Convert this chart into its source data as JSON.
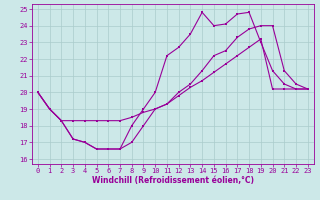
{
  "xlabel": "Windchill (Refroidissement éolien,°C)",
  "bg_color": "#cce8e8",
  "line_color": "#990099",
  "grid_color": "#aacccc",
  "xlim": [
    -0.5,
    23.5
  ],
  "ylim": [
    15.7,
    25.3
  ],
  "yticks": [
    16,
    17,
    18,
    19,
    20,
    21,
    22,
    23,
    24,
    25
  ],
  "xticks": [
    0,
    1,
    2,
    3,
    4,
    5,
    6,
    7,
    8,
    9,
    10,
    11,
    12,
    13,
    14,
    15,
    16,
    17,
    18,
    19,
    20,
    21,
    22,
    23
  ],
  "line1_x": [
    0,
    1,
    2,
    3,
    4,
    5,
    6,
    7,
    8,
    9,
    10,
    11,
    12,
    13,
    14,
    15,
    16,
    17,
    18,
    19,
    20,
    21,
    22,
    23
  ],
  "line1_y": [
    20.0,
    19.0,
    18.3,
    17.2,
    17.0,
    16.6,
    16.6,
    16.6,
    17.0,
    18.0,
    19.0,
    19.3,
    20.0,
    20.5,
    21.3,
    22.2,
    22.5,
    23.3,
    23.8,
    24.0,
    24.0,
    21.3,
    20.5,
    20.2
  ],
  "line2_x": [
    0,
    1,
    2,
    3,
    4,
    5,
    6,
    7,
    8,
    9,
    10,
    11,
    12,
    13,
    14,
    15,
    16,
    17,
    18,
    19,
    20,
    21,
    22,
    23
  ],
  "line2_y": [
    20.0,
    19.0,
    18.3,
    17.2,
    17.0,
    16.6,
    16.6,
    16.6,
    18.0,
    19.0,
    20.0,
    22.2,
    22.7,
    23.5,
    24.8,
    24.0,
    24.1,
    24.7,
    24.8,
    23.0,
    21.3,
    20.5,
    20.2,
    20.2
  ],
  "line3_x": [
    0,
    1,
    2,
    3,
    4,
    5,
    6,
    7,
    8,
    9,
    10,
    11,
    12,
    13,
    14,
    15,
    16,
    17,
    18,
    19,
    20,
    21,
    22,
    23
  ],
  "line3_y": [
    20.0,
    19.0,
    18.3,
    18.3,
    18.3,
    18.3,
    18.3,
    18.3,
    18.5,
    18.8,
    19.0,
    19.3,
    19.8,
    20.3,
    20.7,
    21.2,
    21.7,
    22.2,
    22.7,
    23.2,
    20.2,
    20.2,
    20.2,
    20.2
  ],
  "tick_fontsize": 5.0,
  "xlabel_fontsize": 5.5,
  "marker_size": 2.0,
  "line_width": 0.8
}
